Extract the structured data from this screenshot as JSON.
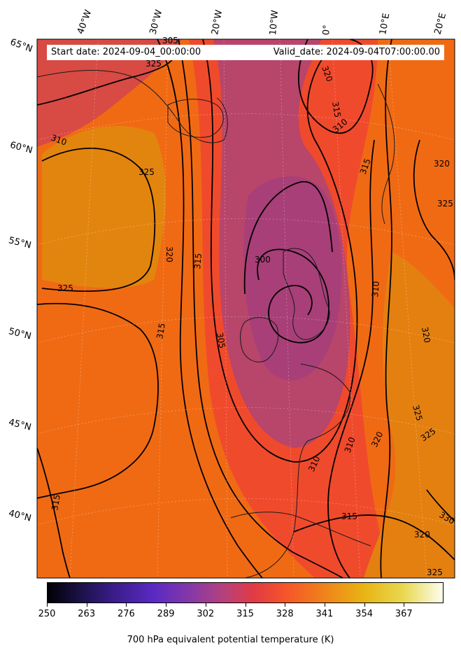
{
  "info": {
    "start_date": "Start date: 2024-09-04_00:00:00",
    "valid_date": "Valid_date: 2024-09-04T07:00:00.00"
  },
  "longitude_labels": [
    "40°W",
    "30°W",
    "20°W",
    "10°W",
    "0°",
    "10°E",
    "20°E"
  ],
  "latitude_labels": [
    "65°N",
    "60°N",
    "55°N",
    "50°N",
    "45°N",
    "40°N"
  ],
  "contour_labels": [
    "305",
    "315",
    "310",
    "325",
    "310",
    "315",
    "320",
    "325",
    "320",
    "315",
    "315",
    "300",
    "310",
    "320",
    "325",
    "305",
    "310",
    "325",
    "315",
    "320",
    "325",
    "310",
    "315",
    "320",
    "325",
    "330",
    "320",
    "325"
  ],
  "colorbar": {
    "ticks": [
      "250",
      "263",
      "276",
      "289",
      "302",
      "315",
      "328",
      "341",
      "354",
      "367"
    ],
    "title": "700 hPa equivalent potential temperature (K)"
  },
  "colors": {
    "warm": "#f0700e",
    "mid": "#f04a2a",
    "cold": "#b2426c",
    "contour": "#000000",
    "coast": "#1a1a1a"
  }
}
